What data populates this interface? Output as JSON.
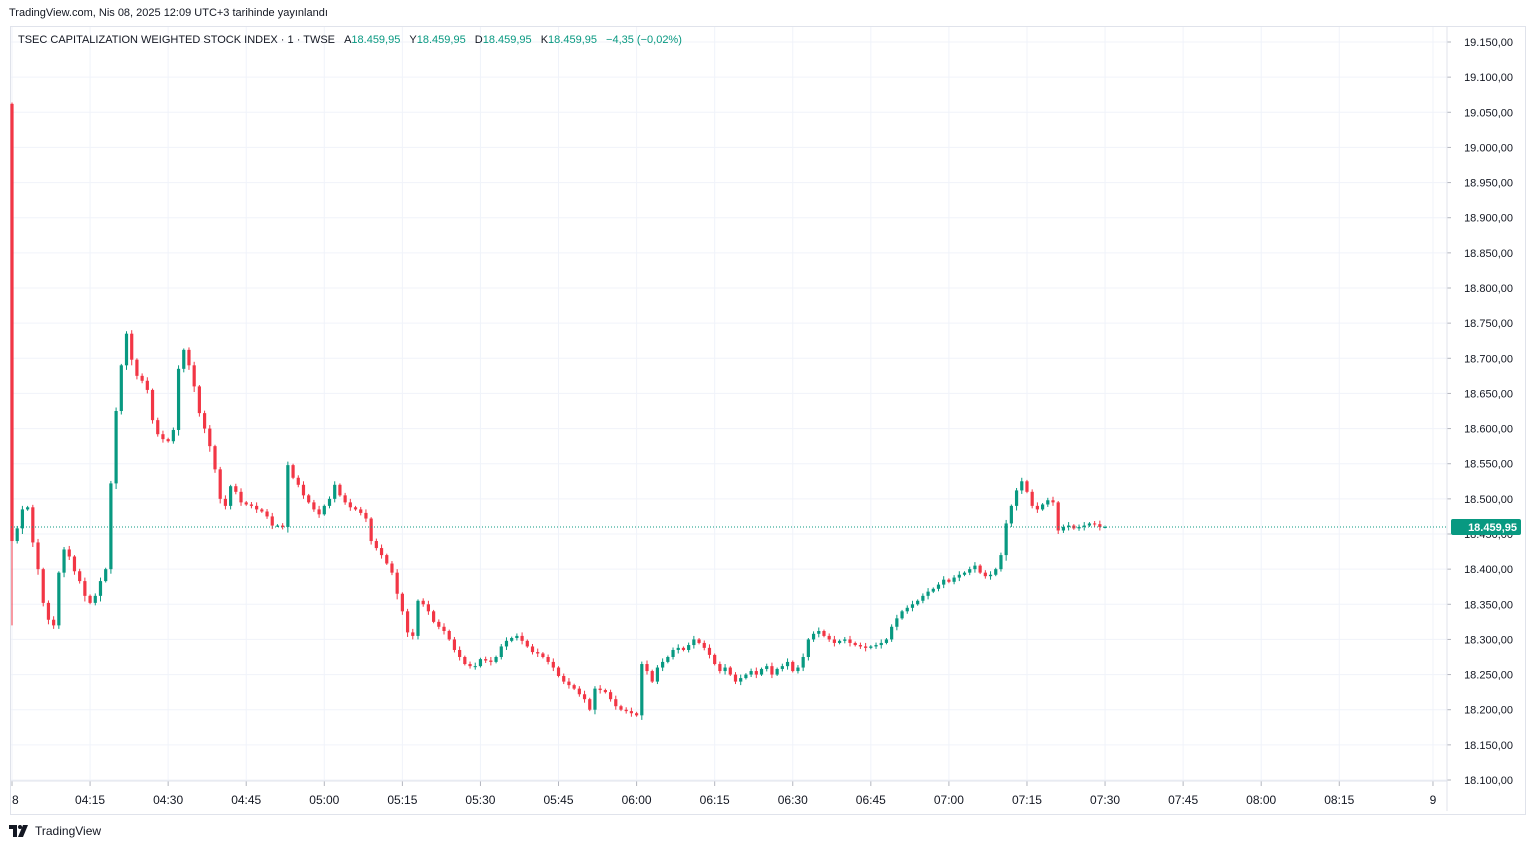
{
  "header": {
    "published": "TradingView.com, Nis 08, 2025 12:09 UTC+3 tarihinde yayınlandı"
  },
  "legend": {
    "symbol": "TSEC CAPITALIZATION WEIGHTED STOCK INDEX · 1 · TWSE",
    "open_label": "A",
    "open": "18.459,95",
    "high_label": "Y",
    "high": "18.459,95",
    "low_label": "D",
    "low": "18.459,95",
    "close_label": "K",
    "close": "18.459,95",
    "change": "−4,35 (−0,02%)"
  },
  "footer": {
    "brand": "TradingView"
  },
  "colors": {
    "up": "#089981",
    "down": "#f23645",
    "grid": "#f0f3fa",
    "text": "#131722",
    "border": "#e0e3eb"
  },
  "chart_data": {
    "type": "candlestick",
    "title": "TSEC CAPITALIZATION WEIGHTED STOCK INDEX · 1 · TWSE",
    "xlabel": "",
    "ylabel": "",
    "ylim": [
      18075,
      19175
    ],
    "y_ticks": [
      19150,
      19100,
      19050,
      19000,
      18950,
      18900,
      18850,
      18800,
      18750,
      18700,
      18650,
      18600,
      18550,
      18500,
      18450,
      18400,
      18350,
      18300,
      18250,
      18200,
      18150,
      18100
    ],
    "y_tick_labels": [
      "19.150,00",
      "19.100,00",
      "19.050,00",
      "19.000,00",
      "18.950,00",
      "18.900,00",
      "18.850,00",
      "18.800,00",
      "18.750,00",
      "18.700,00",
      "18.650,00",
      "18.600,00",
      "18.550,00",
      "18.500,00",
      "18.450,00",
      "18.400,00",
      "18.350,00",
      "18.300,00",
      "18.250,00",
      "18.200,00",
      "18.150,00",
      "18.100,00"
    ],
    "x_tick_labels": [
      "8",
      "04:15",
      "04:30",
      "04:45",
      "05:00",
      "05:15",
      "05:30",
      "05:45",
      "06:00",
      "06:15",
      "06:30",
      "06:45",
      "07:00",
      "07:15",
      "07:30",
      "07:45",
      "08:00",
      "08:15",
      "9"
    ],
    "x_tick_minutes": [
      0,
      15,
      30,
      45,
      60,
      75,
      90,
      105,
      120,
      135,
      150,
      165,
      180,
      195,
      210,
      225,
      240,
      255,
      273
    ],
    "session_start": "04:00",
    "last_price": 18459.95,
    "last_price_label": "18.459,95",
    "close_path": [
      [
        0,
        18440
      ],
      [
        1,
        18458
      ],
      [
        2,
        18485
      ],
      [
        3,
        18488
      ],
      [
        4,
        18438
      ],
      [
        5,
        18400
      ],
      [
        6,
        18352
      ],
      [
        7,
        18328
      ],
      [
        8,
        18320
      ],
      [
        9,
        18395
      ],
      [
        10,
        18428
      ],
      [
        11,
        18418
      ],
      [
        12,
        18397
      ],
      [
        13,
        18383
      ],
      [
        14,
        18362
      ],
      [
        15,
        18352
      ],
      [
        16,
        18362
      ],
      [
        17,
        18383
      ],
      [
        18,
        18400
      ],
      [
        19,
        18522
      ],
      [
        20,
        18625
      ],
      [
        21,
        18690
      ],
      [
        22,
        18735
      ],
      [
        23,
        18698
      ],
      [
        24,
        18675
      ],
      [
        25,
        18668
      ],
      [
        26,
        18655
      ],
      [
        27,
        18612
      ],
      [
        28,
        18592
      ],
      [
        29,
        18585
      ],
      [
        30,
        18582
      ],
      [
        31,
        18598
      ],
      [
        32,
        18685
      ],
      [
        33,
        18712
      ],
      [
        34,
        18690
      ],
      [
        35,
        18660
      ],
      [
        36,
        18622
      ],
      [
        37,
        18600
      ],
      [
        38,
        18575
      ],
      [
        39,
        18542
      ],
      [
        40,
        18500
      ],
      [
        41,
        18490
      ],
      [
        42,
        18518
      ],
      [
        43,
        18510
      ],
      [
        44,
        18495
      ],
      [
        45,
        18492
      ],
      [
        46,
        18490
      ],
      [
        47,
        18485
      ],
      [
        48,
        18482
      ],
      [
        49,
        18475
      ],
      [
        50,
        18462
      ],
      [
        51,
        18462
      ],
      [
        52,
        18460
      ],
      [
        53,
        18548
      ],
      [
        54,
        18530
      ],
      [
        55,
        18520
      ],
      [
        56,
        18505
      ],
      [
        57,
        18495
      ],
      [
        58,
        18485
      ],
      [
        59,
        18478
      ],
      [
        60,
        18490
      ],
      [
        61,
        18500
      ],
      [
        62,
        18520
      ],
      [
        63,
        18505
      ],
      [
        64,
        18495
      ],
      [
        65,
        18488
      ],
      [
        66,
        18485
      ],
      [
        67,
        18480
      ],
      [
        68,
        18472
      ],
      [
        69,
        18440
      ],
      [
        70,
        18430
      ],
      [
        71,
        18420
      ],
      [
        72,
        18408
      ],
      [
        73,
        18395
      ],
      [
        74,
        18365
      ],
      [
        75,
        18340
      ],
      [
        76,
        18310
      ],
      [
        77,
        18305
      ],
      [
        78,
        18355
      ],
      [
        79,
        18350
      ],
      [
        80,
        18340
      ],
      [
        81,
        18325
      ],
      [
        82,
        18318
      ],
      [
        83,
        18312
      ],
      [
        84,
        18300
      ],
      [
        85,
        18285
      ],
      [
        86,
        18275
      ],
      [
        87,
        18265
      ],
      [
        88,
        18262
      ],
      [
        89,
        18262
      ],
      [
        90,
        18272
      ],
      [
        91,
        18270
      ],
      [
        92,
        18268
      ],
      [
        93,
        18275
      ],
      [
        94,
        18290
      ],
      [
        95,
        18298
      ],
      [
        96,
        18302
      ],
      [
        97,
        18305
      ],
      [
        98,
        18298
      ],
      [
        99,
        18290
      ],
      [
        100,
        18282
      ],
      [
        101,
        18280
      ],
      [
        102,
        18275
      ],
      [
        103,
        18268
      ],
      [
        104,
        18260
      ],
      [
        105,
        18248
      ],
      [
        106,
        18240
      ],
      [
        107,
        18235
      ],
      [
        108,
        18230
      ],
      [
        109,
        18222
      ],
      [
        110,
        18215
      ],
      [
        111,
        18200
      ],
      [
        112,
        18230
      ],
      [
        113,
        18228
      ],
      [
        114,
        18225
      ],
      [
        115,
        18215
      ],
      [
        116,
        18205
      ],
      [
        117,
        18200
      ],
      [
        118,
        18198
      ],
      [
        119,
        18195
      ],
      [
        120,
        18192
      ],
      [
        121,
        18265
      ],
      [
        122,
        18255
      ],
      [
        123,
        18240
      ],
      [
        124,
        18260
      ],
      [
        125,
        18268
      ],
      [
        126,
        18275
      ],
      [
        127,
        18285
      ],
      [
        128,
        18288
      ],
      [
        129,
        18285
      ],
      [
        130,
        18292
      ],
      [
        131,
        18300
      ],
      [
        132,
        18295
      ],
      [
        133,
        18288
      ],
      [
        134,
        18278
      ],
      [
        135,
        18265
      ],
      [
        136,
        18255
      ],
      [
        137,
        18260
      ],
      [
        138,
        18250
      ],
      [
        139,
        18240
      ],
      [
        140,
        18245
      ],
      [
        141,
        18250
      ],
      [
        142,
        18255
      ],
      [
        143,
        18250
      ],
      [
        144,
        18258
      ],
      [
        145,
        18262
      ],
      [
        146,
        18250
      ],
      [
        147,
        18258
      ],
      [
        148,
        18262
      ],
      [
        149,
        18268
      ],
      [
        150,
        18255
      ],
      [
        151,
        18260
      ],
      [
        152,
        18275
      ],
      [
        153,
        18300
      ],
      [
        154,
        18308
      ],
      [
        155,
        18312
      ],
      [
        156,
        18305
      ],
      [
        157,
        18300
      ],
      [
        158,
        18295
      ],
      [
        159,
        18298
      ],
      [
        160,
        18300
      ],
      [
        161,
        18295
      ],
      [
        162,
        18292
      ],
      [
        163,
        18290
      ],
      [
        164,
        18288
      ],
      [
        165,
        18290
      ],
      [
        166,
        18292
      ],
      [
        167,
        18295
      ],
      [
        168,
        18300
      ],
      [
        169,
        18318
      ],
      [
        170,
        18330
      ],
      [
        171,
        18340
      ],
      [
        172,
        18345
      ],
      [
        173,
        18350
      ],
      [
        174,
        18355
      ],
      [
        175,
        18362
      ],
      [
        176,
        18368
      ],
      [
        177,
        18372
      ],
      [
        178,
        18378
      ],
      [
        179,
        18385
      ],
      [
        180,
        18382
      ],
      [
        181,
        18388
      ],
      [
        182,
        18392
      ],
      [
        183,
        18395
      ],
      [
        184,
        18400
      ],
      [
        185,
        18405
      ],
      [
        186,
        18395
      ],
      [
        187,
        18390
      ],
      [
        188,
        18392
      ],
      [
        189,
        18400
      ],
      [
        190,
        18420
      ],
      [
        191,
        18465
      ],
      [
        192,
        18490
      ],
      [
        193,
        18512
      ],
      [
        194,
        18525
      ],
      [
        195,
        18510
      ],
      [
        196,
        18490
      ],
      [
        197,
        18485
      ],
      [
        198,
        18492
      ],
      [
        199,
        18498
      ],
      [
        200,
        18495
      ],
      [
        201,
        18455
      ],
      [
        202,
        18460
      ],
      [
        203,
        18462
      ],
      [
        204,
        18458
      ],
      [
        205,
        18460
      ],
      [
        206,
        18462
      ],
      [
        207,
        18465
      ],
      [
        208,
        18464
      ],
      [
        209,
        18460
      ],
      [
        210,
        18460
      ]
    ],
    "spikes": [
      {
        "minute": 0,
        "open": 19062,
        "high": 19064,
        "low": 18320,
        "close": 18440
      }
    ]
  }
}
